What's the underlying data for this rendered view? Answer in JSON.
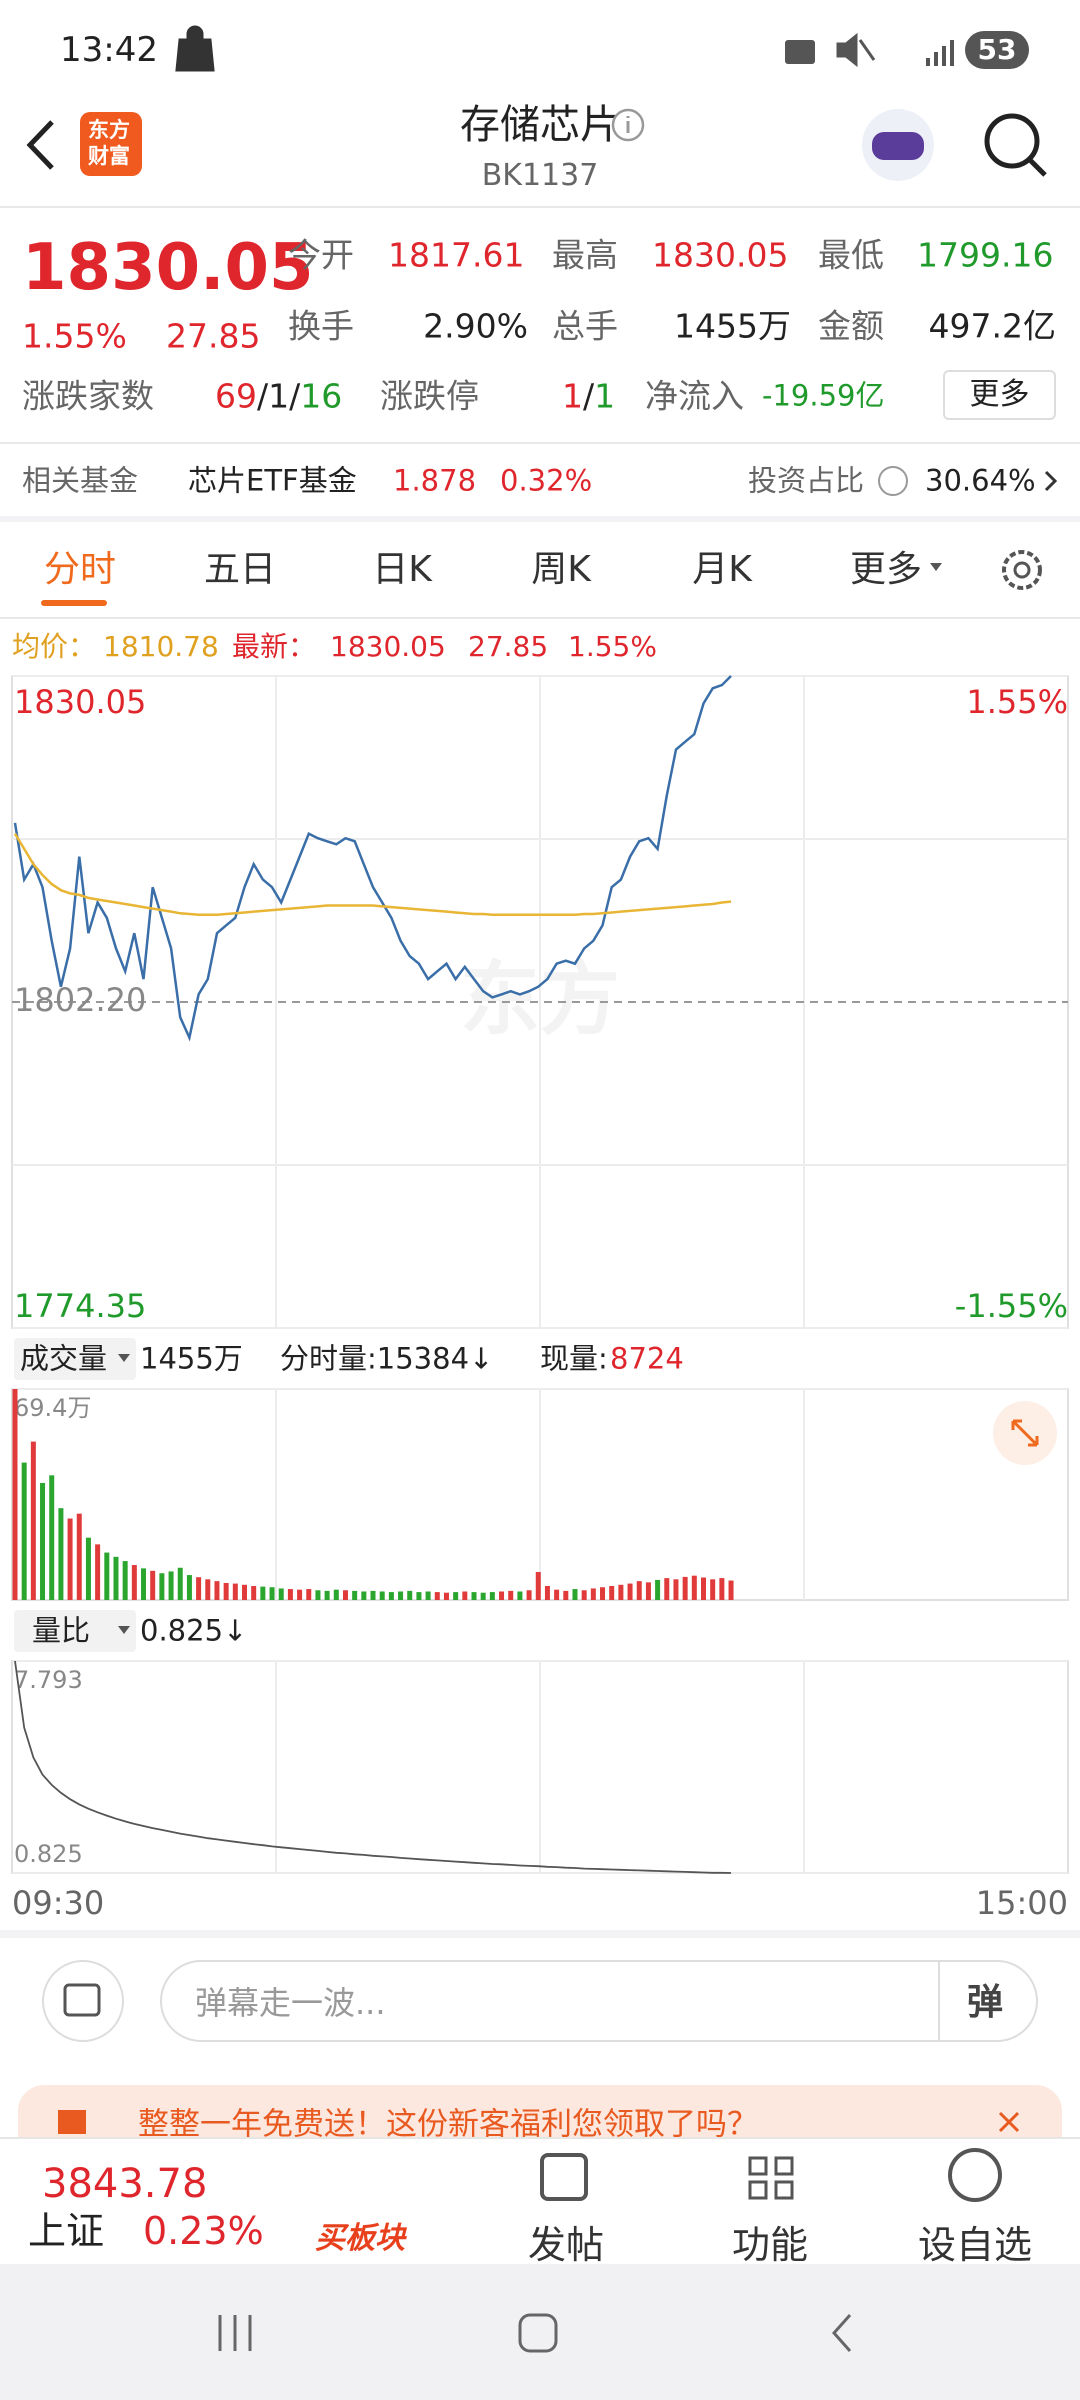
{
  "status_bar": {
    "time": "13:42",
    "battery": "53"
  },
  "header": {
    "logo_lines": [
      "东方",
      "财富"
    ],
    "title": "存储芯片",
    "code": "BK1137"
  },
  "quote": {
    "price": "1830.05",
    "change_pct": "1.55%",
    "change": "27.85",
    "row1": [
      {
        "label": "今开",
        "value": "1817.61"
      },
      {
        "label": "最高",
        "value": "1830.05"
      },
      {
        "label": "最低",
        "value": "1799.16"
      }
    ],
    "row2": [
      {
        "label": "换手",
        "value": "2.90%"
      },
      {
        "label": "总手",
        "value": "1455万"
      },
      {
        "label": "金额",
        "value": "497.2亿"
      }
    ],
    "breadth": {
      "label": "涨跌家数",
      "values": [
        "69",
        "/1/",
        "16"
      ]
    },
    "limit": {
      "label": "涨跌停",
      "values": [
        "1",
        "/",
        "1"
      ]
    },
    "inflow": {
      "label": "净流入",
      "value": "-19.59亿"
    },
    "more": "更多"
  },
  "fund": {
    "label": "相关基金",
    "name": "芯片ETF基金",
    "price": "1.878",
    "pct": "0.32%",
    "share_label": "投资占比",
    "share": "30.64%"
  },
  "tabs": {
    "items": [
      "分时",
      "五日",
      "日K",
      "周K",
      "月K",
      "更多"
    ],
    "active": 0
  },
  "info_line": {
    "avg_label": "均价：",
    "avg": "1810.78",
    "last_label": "最新：",
    "last": "1830.05",
    "change": "27.85",
    "pct": "1.55%"
  },
  "intraday_chart": {
    "type": "line",
    "series": [
      {
        "color": "#3a6ea8",
        "values": [
          1817.5,
          1812.66,
          1813.97,
          1812.01,
          1807.43,
          1803.51,
          1806.78,
          1814.62,
          1808.08,
          1810.7,
          1809.39,
          1806.78,
          1804.82,
          1808.08,
          1804.16,
          1812.01,
          1809.39,
          1806.78,
          1800.89,
          1799.16,
          1802.85,
          1804.16,
          1808.08,
          1808.74,
          1809.39,
          1812.01,
          1813.97,
          1812.66,
          1812.01,
          1810.7,
          1812.66,
          1814.62,
          1816.58,
          1816.19,
          1815.93,
          1815.67,
          1816.19,
          1815.93,
          1813.97,
          1812.01,
          1810.7,
          1809.39,
          1807.43,
          1806.12,
          1805.47,
          1804.16,
          1804.82,
          1805.47,
          1804.16,
          1805.21,
          1804.16,
          1803.12,
          1802.59,
          1802.85,
          1803.12,
          1802.85,
          1803.12,
          1803.51,
          1804.16,
          1805.47,
          1805.73,
          1805.47,
          1806.78,
          1807.43,
          1808.74,
          1812.01,
          1812.66,
          1814.62,
          1815.93,
          1816.19,
          1815.28,
          1819.85,
          1823.77,
          1824.43,
          1825.08,
          1827.7,
          1829.0,
          1829.27,
          1830.05
        ]
      },
      {
        "color": "#e8b634",
        "values": [
          1816.58,
          1815.28,
          1813.97,
          1813.05,
          1812.27,
          1811.75,
          1811.48,
          1811.35,
          1811.09,
          1810.96,
          1810.83,
          1810.7,
          1810.57,
          1810.44,
          1810.31,
          1810.18,
          1810.05,
          1809.92,
          1809.78,
          1809.72,
          1809.65,
          1809.65,
          1809.65,
          1809.72,
          1809.78,
          1809.85,
          1809.92,
          1809.98,
          1810.05,
          1810.11,
          1810.18,
          1810.24,
          1810.31,
          1810.37,
          1810.44,
          1810.44,
          1810.44,
          1810.44,
          1810.44,
          1810.44,
          1810.37,
          1810.31,
          1810.24,
          1810.18,
          1810.11,
          1810.05,
          1809.98,
          1809.92,
          1809.85,
          1809.78,
          1809.72,
          1809.72,
          1809.65,
          1809.65,
          1809.65,
          1809.65,
          1809.65,
          1809.65,
          1809.65,
          1809.65,
          1809.65,
          1809.65,
          1809.72,
          1809.72,
          1809.78,
          1809.85,
          1809.92,
          1809.98,
          1810.05,
          1810.11,
          1810.18,
          1810.24,
          1810.31,
          1810.37,
          1810.44,
          1810.51,
          1810.57,
          1810.7,
          1810.78
        ]
      }
    ],
    "ylim": [
      1774.35,
      1830.05
    ],
    "yticks": [
      1830.05,
      {
        "value": 1816.13,
        "label": null
      },
      {
        "value": 1802.2,
        "label": "1802.20"
      },
      {
        "value": 1788.28,
        "label": null
      },
      1774.35
    ],
    "right_labels": [
      "1.55%",
      "-1.55%"
    ]
  },
  "volume_header": {
    "label": "成交量",
    "total": "1455万",
    "minute": "分时量:15384↓",
    "now_label": "现量:",
    "now": "8724"
  },
  "volume_chart": {
    "type": "bar",
    "up_color": "#e03a3a",
    "down_color": "#2aa52e",
    "values": [
      69.4,
      45.2,
      52.1,
      38.5,
      41.0,
      30.2,
      26.8,
      28.4,
      20.5,
      18.3,
      15.6,
      14.2,
      12.8,
      11.5,
      10.4,
      9.6,
      8.8,
      9.4,
      10.6,
      8.2,
      7.5,
      6.8,
      6.2,
      5.6,
      5.4,
      5.0,
      4.6,
      4.4,
      4.2,
      3.8,
      3.6,
      3.4,
      3.6,
      3.2,
      3.0,
      3.4,
      3.2,
      3.0,
      2.8,
      3.0,
      2.8,
      2.6,
      2.8,
      3.0,
      2.6,
      2.8,
      2.6,
      2.4,
      2.6,
      2.8,
      2.6,
      2.4,
      2.6,
      2.8,
      3.0,
      2.8,
      3.2,
      9.2,
      4.6,
      3.4,
      3.0,
      3.6,
      3.2,
      3.8,
      4.2,
      4.6,
      5.0,
      5.4,
      6.2,
      5.8,
      6.6,
      7.2,
      6.8,
      7.6,
      8.0,
      7.4,
      6.8,
      7.2,
      6.4
    ],
    "ylim": [
      0,
      69.4
    ],
    "yticks": [
      {
        "value": 69.4,
        "label": "69.4万"
      }
    ]
  },
  "ratio_header": {
    "label": "量比",
    "value": "0.825↓"
  },
  "ratio_chart": {
    "type": "line",
    "color": "#555555",
    "values": [
      7.793,
      5.6,
      4.62,
      4.06,
      3.72,
      3.46,
      3.25,
      3.08,
      2.94,
      2.82,
      2.71,
      2.61,
      2.52,
      2.44,
      2.37,
      2.3,
      2.24,
      2.18,
      2.12,
      2.07,
      2.02,
      1.97,
      1.93,
      1.89,
      1.85,
      1.81,
      1.77,
      1.74,
      1.7,
      1.67,
      1.64,
      1.61,
      1.58,
      1.55,
      1.52,
      1.49,
      1.47,
      1.44,
      1.42,
      1.39,
      1.37,
      1.35,
      1.32,
      1.3,
      1.28,
      1.26,
      1.24,
      1.22,
      1.2,
      1.18,
      1.16,
      1.14,
      1.12,
      1.11,
      1.09,
      1.07,
      1.06,
      1.05,
      1.03,
      1.02,
      1.0,
      0.99,
      0.97,
      0.96,
      0.95,
      0.94,
      0.93,
      0.92,
      0.91,
      0.9,
      0.89,
      0.88,
      0.87,
      0.86,
      0.85,
      0.84,
      0.83,
      0.83,
      0.825
    ],
    "ylim": [
      0.825,
      7.793
    ],
    "yticks": [
      7.793,
      0.825
    ]
  },
  "time_labels": [
    "09:30",
    "15:00"
  ],
  "comment": {
    "placeholder": "弹幕走一波...",
    "button": "弹"
  },
  "banner": {
    "text": "整整一年免费送！这份新客福利您领取了吗？"
  },
  "bottom_nav": {
    "index": {
      "value": "3843.78",
      "name": "上证",
      "pct": "0.23%"
    },
    "items": [
      "买板块",
      "发帖",
      "功能",
      "设自选"
    ]
  }
}
